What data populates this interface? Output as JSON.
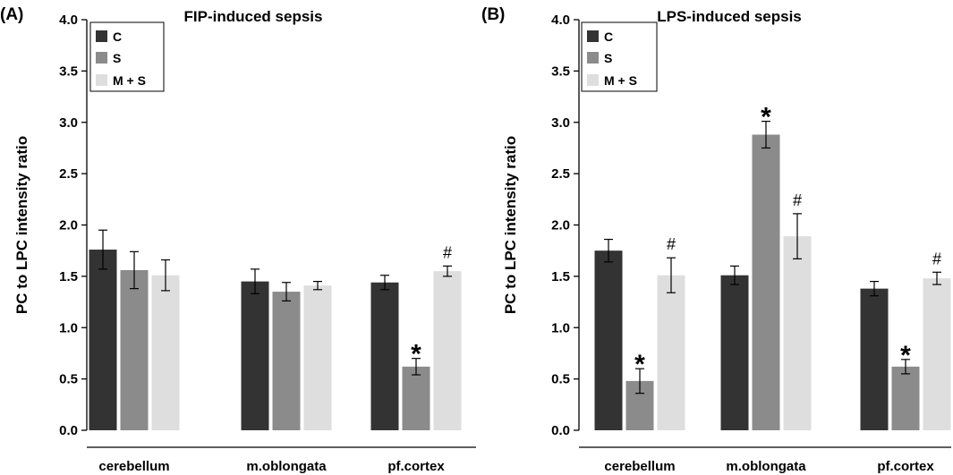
{
  "chart_data": [
    {
      "type": "bar",
      "panel_label": "(A)",
      "title": "FIP-induced sepsis",
      "xlabel": "",
      "ylabel": "PC to LPC intensity ratio",
      "ylim": [
        0,
        4
      ],
      "yticks": [
        "0.0",
        "0.5",
        "1.0",
        "1.5",
        "2.0",
        "2.5",
        "3.0",
        "3.5",
        "4.0"
      ],
      "categories": [
        "cerebellum",
        "m.oblongata",
        "pf.cortex"
      ],
      "legend_position": "top-left",
      "series": [
        {
          "name": "C",
          "color": "#333333",
          "values": [
            1.76,
            1.45,
            1.44
          ],
          "errors": [
            0.19,
            0.12,
            0.07
          ],
          "annotations": [
            "",
            "",
            ""
          ]
        },
        {
          "name": "S",
          "color": "#8b8b8b",
          "values": [
            1.56,
            1.35,
            0.62
          ],
          "errors": [
            0.18,
            0.09,
            0.08
          ],
          "annotations": [
            "",
            "",
            "*"
          ]
        },
        {
          "name": "M + S",
          "color": "#dedede",
          "values": [
            1.51,
            1.41,
            1.55
          ],
          "errors": [
            0.15,
            0.04,
            0.05
          ],
          "annotations": [
            "",
            "",
            "#"
          ]
        }
      ]
    },
    {
      "type": "bar",
      "panel_label": "(B)",
      "title": "LPS-induced sepsis",
      "xlabel": "",
      "ylabel": "PC to LPC intensity ratio",
      "ylim": [
        0,
        4
      ],
      "yticks": [
        "0.0",
        "0.5",
        "1.0",
        "1.5",
        "2.0",
        "2.5",
        "3.0",
        "3.5",
        "4.0"
      ],
      "categories": [
        "cerebellum",
        "m.oblongata",
        "pf.cortex"
      ],
      "legend_position": "top-left",
      "series": [
        {
          "name": "C",
          "color": "#333333",
          "values": [
            1.75,
            1.51,
            1.38
          ],
          "errors": [
            0.11,
            0.09,
            0.07
          ],
          "annotations": [
            "",
            "",
            ""
          ]
        },
        {
          "name": "S",
          "color": "#8b8b8b",
          "values": [
            0.48,
            2.88,
            0.62
          ],
          "errors": [
            0.12,
            0.13,
            0.07
          ],
          "annotations": [
            "*",
            "*",
            "*"
          ]
        },
        {
          "name": "M + S",
          "color": "#dedede",
          "values": [
            1.51,
            1.89,
            1.48
          ],
          "errors": [
            0.17,
            0.22,
            0.06
          ],
          "annotations": [
            "#",
            "#",
            "#"
          ]
        }
      ]
    }
  ]
}
